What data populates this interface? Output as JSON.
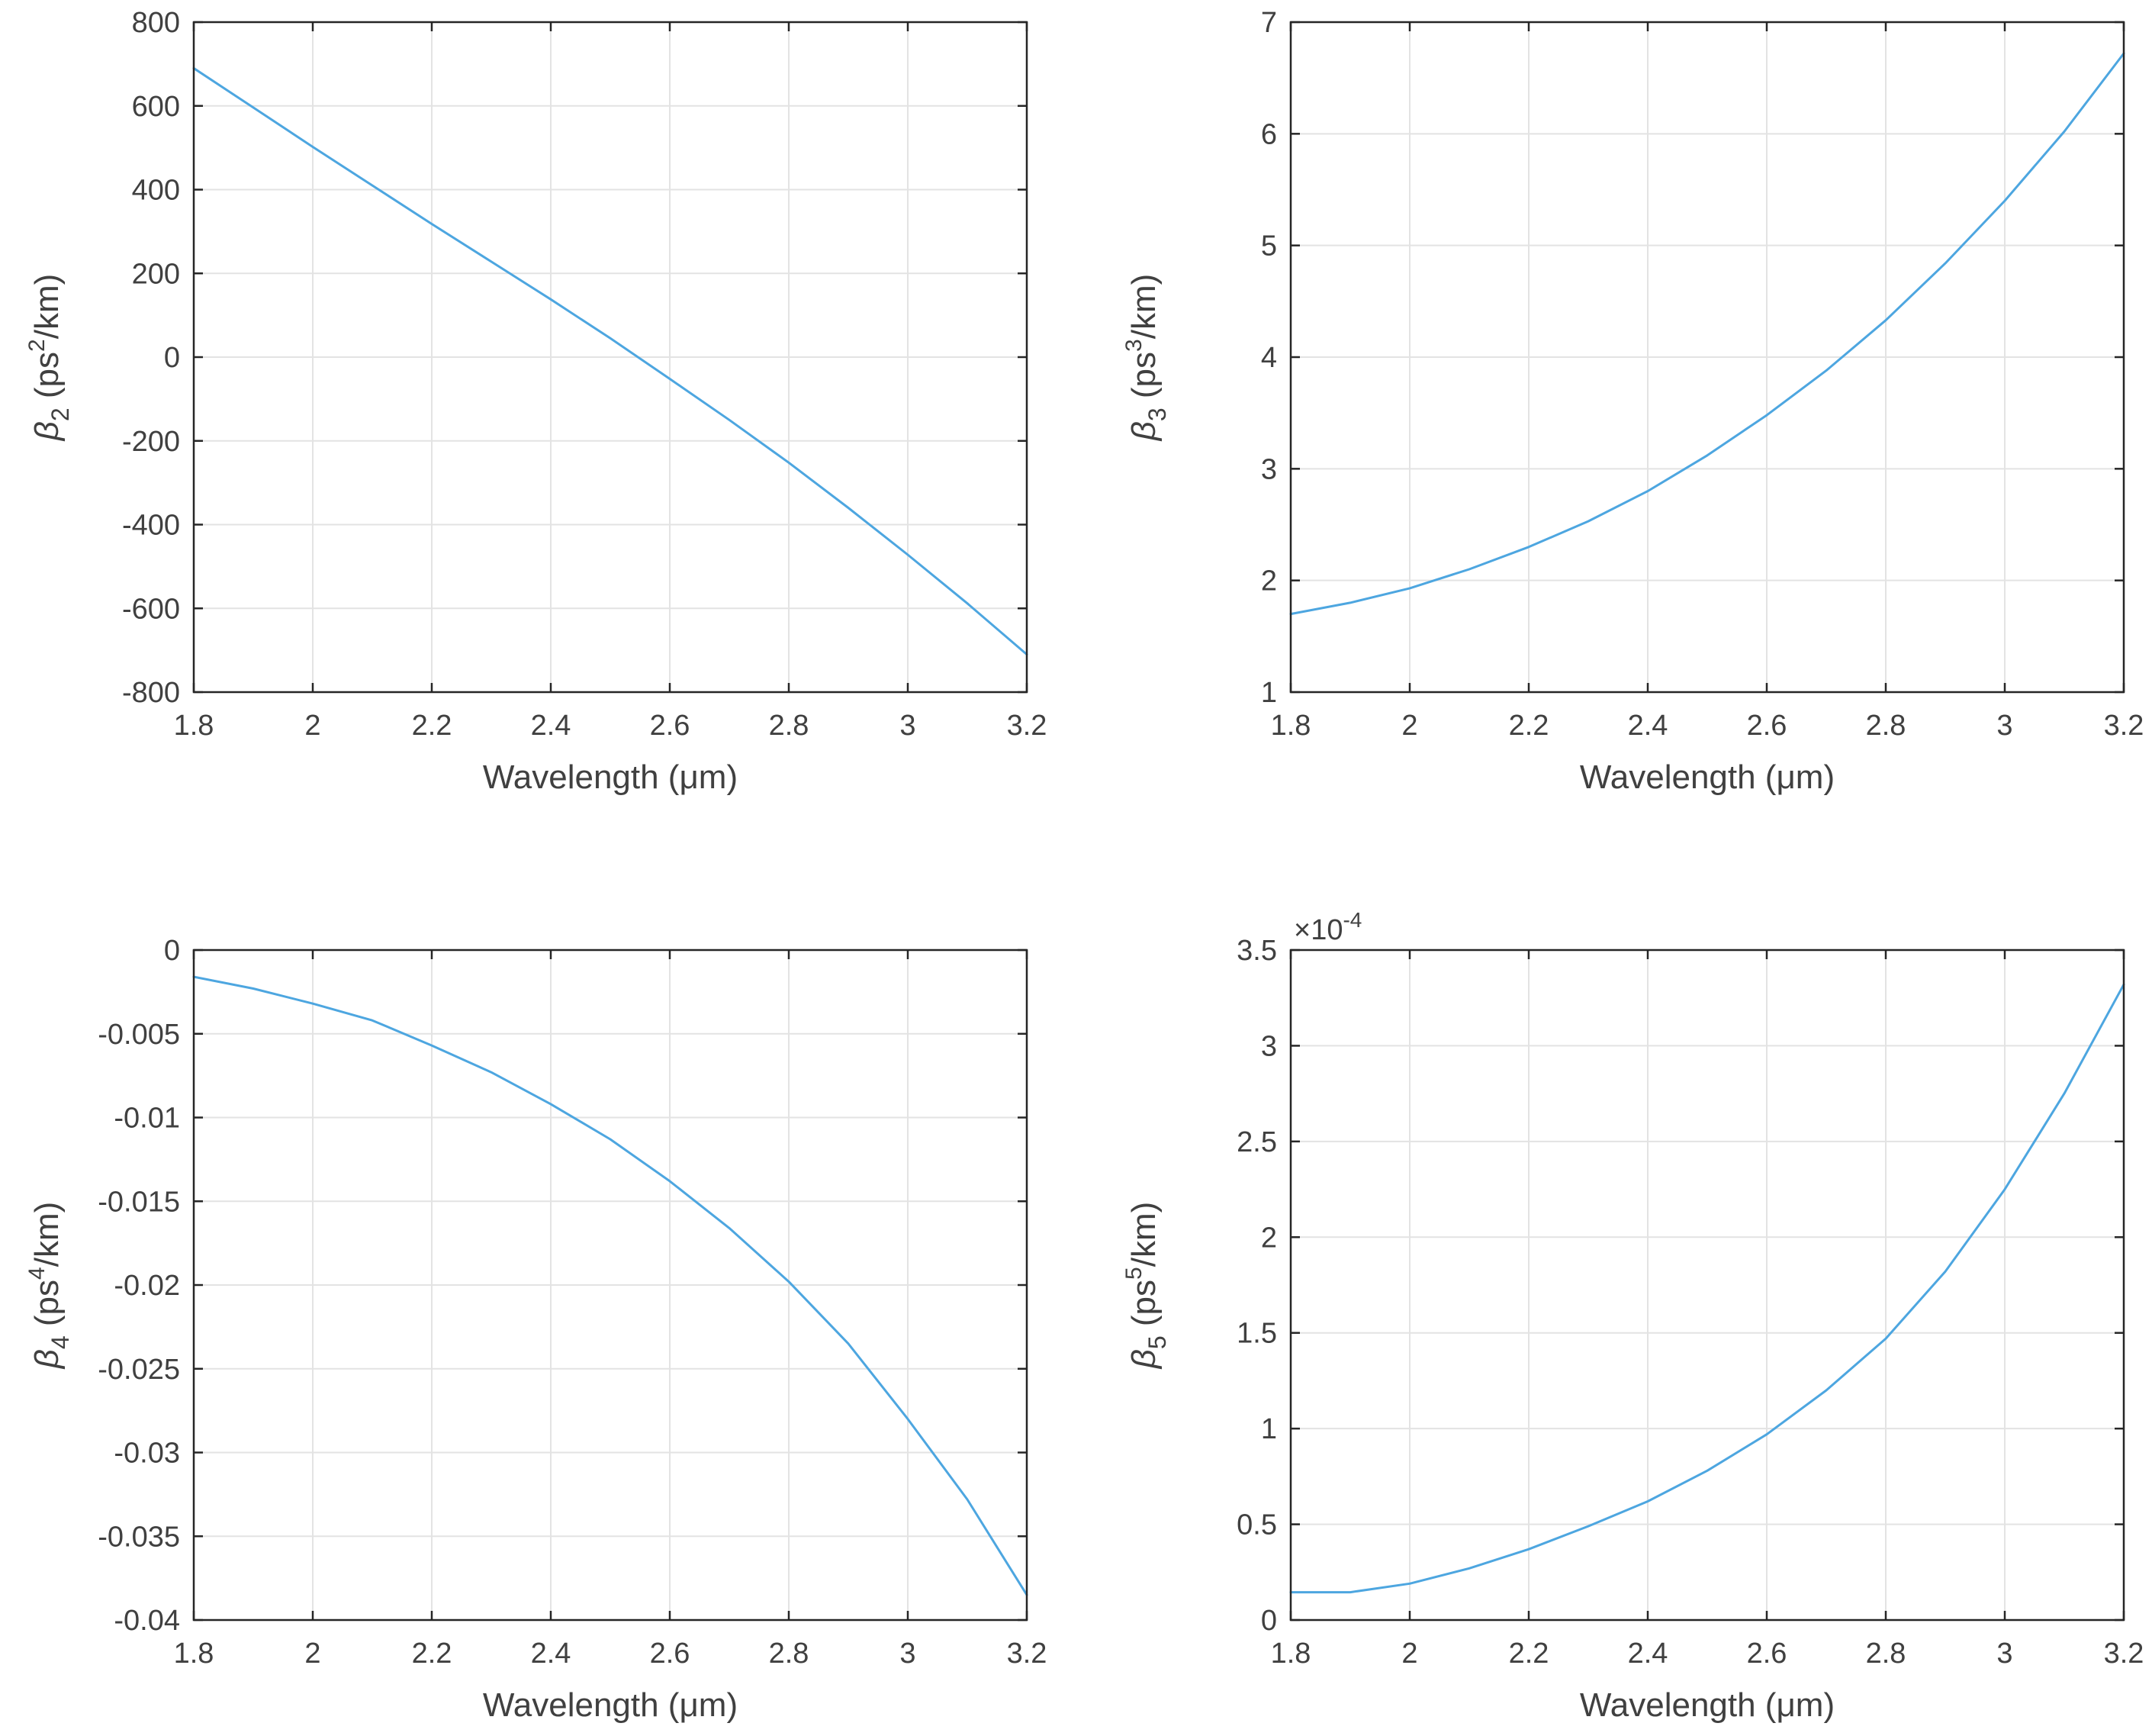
{
  "figure": {
    "line_color": "#4DA6E0",
    "axis_color": "#262626",
    "grid_color": "#E3E3E3",
    "text_color": "#404040"
  },
  "chart_data": [
    {
      "type": "line",
      "xlabel": "Wavelength (μm)",
      "ylabel": {
        "symbol": "β",
        "sub": "2",
        "unit_pre": " (ps",
        "sup": "2",
        "unit_post": "/km)"
      },
      "xlim": [
        1.8,
        3.2
      ],
      "ylim": [
        -800,
        800
      ],
      "grid": true,
      "xticks": [
        1.8,
        2,
        2.2,
        2.4,
        2.6,
        2.8,
        3,
        3.2
      ],
      "xtick_labels": [
        "1.8",
        "2",
        "2.2",
        "2.4",
        "2.6",
        "2.8",
        "3",
        "3.2"
      ],
      "yticks": [
        -800,
        -600,
        -400,
        -200,
        0,
        200,
        400,
        600,
        800
      ],
      "ytick_labels": [
        "-800",
        "-600",
        "-400",
        "-200",
        "0",
        "200",
        "400",
        "600",
        "800"
      ],
      "y_exponent": "",
      "series": [
        {
          "x": [
            1.8,
            1.9,
            2.0,
            2.1,
            2.2,
            2.3,
            2.4,
            2.5,
            2.6,
            2.7,
            2.8,
            2.9,
            3.0,
            3.1,
            3.2
          ],
          "y": [
            690,
            596,
            502,
            410,
            318,
            228,
            138,
            45,
            -52,
            -150,
            -252,
            -360,
            -472,
            -588,
            -710
          ]
        }
      ]
    },
    {
      "type": "line",
      "xlabel": "Wavelength (μm)",
      "ylabel": {
        "symbol": "β",
        "sub": "3",
        "unit_pre": " (ps",
        "sup": "3",
        "unit_post": "/km)"
      },
      "xlim": [
        1.8,
        3.2
      ],
      "ylim": [
        1,
        7
      ],
      "grid": true,
      "xticks": [
        1.8,
        2,
        2.2,
        2.4,
        2.6,
        2.8,
        3,
        3.2
      ],
      "xtick_labels": [
        "1.8",
        "2",
        "2.2",
        "2.4",
        "2.6",
        "2.8",
        "3",
        "3.2"
      ],
      "yticks": [
        1,
        2,
        3,
        4,
        5,
        6,
        7
      ],
      "ytick_labels": [
        "1",
        "2",
        "3",
        "4",
        "5",
        "6",
        "7"
      ],
      "y_exponent": "",
      "series": [
        {
          "x": [
            1.8,
            1.9,
            2.0,
            2.1,
            2.2,
            2.3,
            2.4,
            2.5,
            2.6,
            2.7,
            2.8,
            2.9,
            3.0,
            3.1,
            3.2
          ],
          "y": [
            1.7,
            1.8,
            1.93,
            2.1,
            2.3,
            2.53,
            2.8,
            3.12,
            3.48,
            3.88,
            4.33,
            4.84,
            5.4,
            6.02,
            6.72
          ]
        }
      ]
    },
    {
      "type": "line",
      "xlabel": "Wavelength (μm)",
      "ylabel": {
        "symbol": "β",
        "sub": "4",
        "unit_pre": " (ps",
        "sup": "4",
        "unit_post": "/km)"
      },
      "xlim": [
        1.8,
        3.2
      ],
      "ylim": [
        -0.04,
        0
      ],
      "grid": true,
      "xticks": [
        1.8,
        2,
        2.2,
        2.4,
        2.6,
        2.8,
        3,
        3.2
      ],
      "xtick_labels": [
        "1.8",
        "2",
        "2.2",
        "2.4",
        "2.6",
        "2.8",
        "3",
        "3.2"
      ],
      "yticks": [
        -0.04,
        -0.035,
        -0.03,
        -0.025,
        -0.02,
        -0.015,
        -0.01,
        -0.005,
        0
      ],
      "ytick_labels": [
        "-0.04",
        "-0.035",
        "-0.03",
        "-0.025",
        "-0.02",
        "-0.015",
        "-0.01",
        "-0.005",
        "0"
      ],
      "y_exponent": "",
      "series": [
        {
          "x": [
            1.8,
            1.9,
            2.0,
            2.1,
            2.2,
            2.3,
            2.4,
            2.5,
            2.6,
            2.7,
            2.8,
            2.9,
            3.0,
            3.1,
            3.2
          ],
          "y": [
            -0.0016,
            -0.0023,
            -0.0032,
            -0.0042,
            -0.0057,
            -0.0073,
            -0.0092,
            -0.0113,
            -0.0138,
            -0.0166,
            -0.0198,
            -0.0235,
            -0.028,
            -0.0328,
            -0.0385
          ]
        }
      ]
    },
    {
      "type": "line",
      "xlabel": "Wavelength (μm)",
      "ylabel": {
        "symbol": "β",
        "sub": "5",
        "unit_pre": " (ps",
        "sup": "5",
        "unit_post": "/km)"
      },
      "xlim": [
        1.8,
        3.2
      ],
      "ylim": [
        0,
        3.5
      ],
      "grid": true,
      "xticks": [
        1.8,
        2,
        2.2,
        2.4,
        2.6,
        2.8,
        3,
        3.2
      ],
      "xtick_labels": [
        "1.8",
        "2",
        "2.2",
        "2.4",
        "2.6",
        "2.8",
        "3",
        "3.2"
      ],
      "yticks": [
        0,
        0.5,
        1,
        1.5,
        2,
        2.5,
        3,
        3.5
      ],
      "ytick_labels": [
        "0",
        "0.5",
        "1",
        "1.5",
        "2",
        "2.5",
        "3",
        "3.5"
      ],
      "y_exponent": {
        "base": "×10",
        "power": "-4"
      },
      "series": [
        {
          "x": [
            1.8,
            1.9,
            2.0,
            2.1,
            2.2,
            2.3,
            2.4,
            2.5,
            2.6,
            2.7,
            2.8,
            2.9,
            3.0,
            3.1,
            3.2
          ],
          "y": [
            0.145,
            0.145,
            0.19,
            0.27,
            0.37,
            0.49,
            0.62,
            0.78,
            0.97,
            1.2,
            1.47,
            1.82,
            2.25,
            2.75,
            3.32
          ]
        }
      ]
    }
  ]
}
